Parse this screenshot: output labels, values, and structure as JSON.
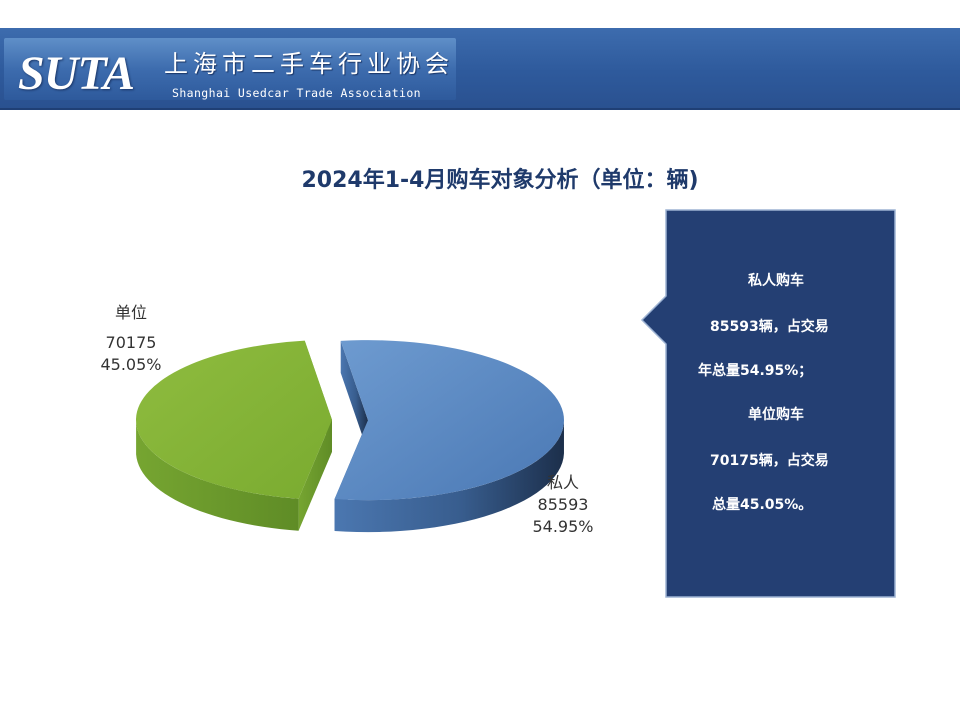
{
  "header": {
    "logo_text": "SUTA",
    "org_name_cn": "上海市二手车行业协会",
    "org_name_en": "Shanghai Usedcar Trade Association"
  },
  "chart_data": {
    "type": "pie",
    "title": "2024年1-4月购车对象分析（单位：辆)",
    "slices": [
      {
        "name": "私人",
        "value": 85593,
        "percent_label": "54.95%",
        "color": "#4f81bd"
      },
      {
        "name": "单位",
        "value": 70175,
        "percent_label": "45.05%",
        "color": "#8fbc3f"
      }
    ]
  },
  "callout": {
    "background": "#243f73",
    "lines": [
      "私人购车",
      "85593辆，占交易",
      "年总量54.95%；",
      "单位购车",
      "70175辆，占交易",
      "总量45.05%。"
    ]
  }
}
